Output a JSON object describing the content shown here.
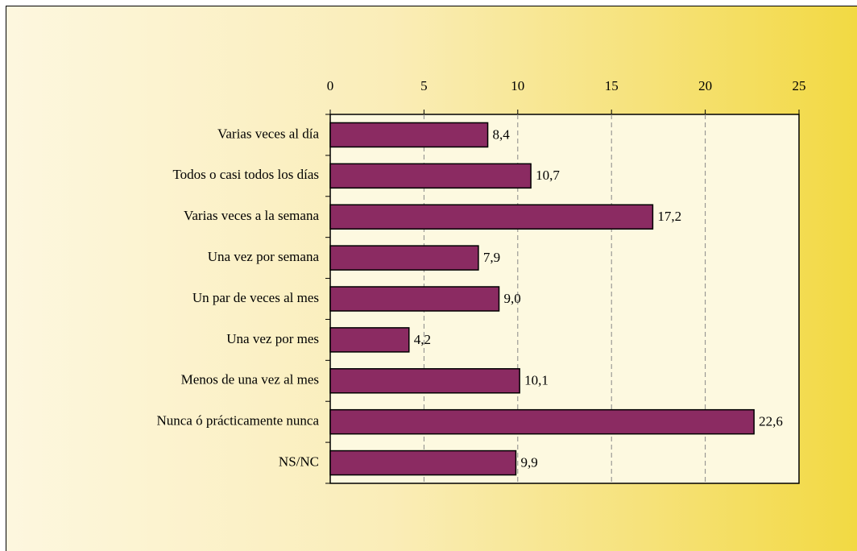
{
  "chart_data": {
    "type": "bar",
    "orientation": "horizontal",
    "categories": [
      "Varias veces al día",
      "Todos o casi todos los días",
      "Varias veces a la semana",
      "Una vez por semana",
      "Un par de veces al mes",
      "Una vez por mes",
      "Menos de una vez al mes",
      "Nunca ó prácticamente nunca",
      "NS/NC"
    ],
    "values": [
      8.4,
      10.7,
      17.2,
      7.9,
      9.0,
      4.2,
      10.1,
      22.6,
      9.9
    ],
    "value_labels": [
      "8,4",
      "10,7",
      "17,2",
      "7,9",
      "9,0",
      "4,2",
      "10,1",
      "22,6",
      "9,9"
    ],
    "color": "#8b2b62",
    "xlim": [
      0,
      25
    ],
    "xticks": [
      0,
      5,
      10,
      15,
      20,
      25
    ],
    "grid": true
  }
}
